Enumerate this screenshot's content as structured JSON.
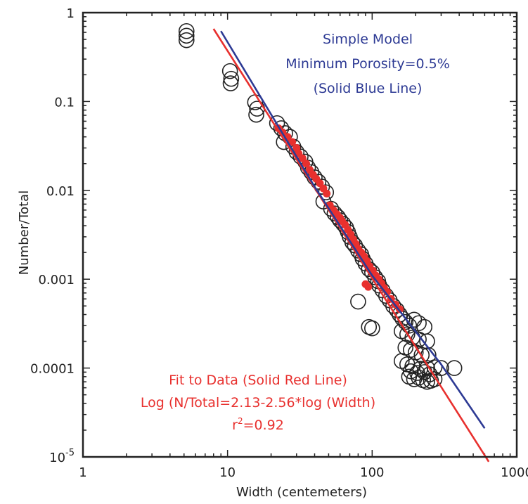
{
  "chart_data": {
    "type": "scatter",
    "title": "",
    "xlabel": "Width (centemeters)",
    "ylabel": "Number/Total",
    "x_scale": "log",
    "y_scale": "log",
    "xlim": [
      1,
      1000
    ],
    "ylim": [
      1e-05,
      1
    ],
    "x_ticks": [
      {
        "value": 1,
        "label": "1"
      },
      {
        "value": 10,
        "label": "10"
      },
      {
        "value": 100,
        "label": "100"
      },
      {
        "value": 1000,
        "label": "1000"
      }
    ],
    "y_ticks": [
      {
        "value": 1,
        "label": "1"
      },
      {
        "value": 0.1,
        "label": "0.1"
      },
      {
        "value": 0.01,
        "label": "0.01"
      },
      {
        "value": 0.001,
        "label": "0.001"
      },
      {
        "value": 0.0001,
        "label": "0.0001"
      },
      {
        "value": 1e-05,
        "label_base": "10",
        "label_exp": "-5"
      }
    ],
    "grid": false,
    "colors": {
      "open_marker": "#222222",
      "filled_marker": "#e8302e",
      "model_line": "#2d3a94",
      "fit_line": "#e8302e"
    },
    "series": [
      {
        "marker": "open-circle",
        "points": [
          [
            5.2,
            0.62
          ],
          [
            5.2,
            0.55
          ],
          [
            5.2,
            0.49
          ],
          [
            10.4,
            0.22
          ],
          [
            10.6,
            0.18
          ],
          [
            10.5,
            0.16
          ],
          [
            15.5,
            0.098
          ],
          [
            16,
            0.083
          ],
          [
            15.8,
            0.071
          ],
          [
            22,
            0.057
          ],
          [
            23.5,
            0.05
          ],
          [
            25,
            0.044
          ],
          [
            27,
            0.04
          ],
          [
            24.5,
            0.035
          ],
          [
            28.5,
            0.031
          ],
          [
            30,
            0.027
          ],
          [
            32,
            0.024
          ],
          [
            34.5,
            0.021
          ],
          [
            36,
            0.018
          ],
          [
            38,
            0.016
          ],
          [
            40,
            0.014
          ],
          [
            42.5,
            0.0125
          ],
          [
            45,
            0.011
          ],
          [
            48,
            0.0095
          ],
          [
            46,
            0.0075
          ],
          [
            52,
            0.0062
          ],
          [
            55,
            0.0055
          ],
          [
            58,
            0.005
          ],
          [
            60,
            0.0046
          ],
          [
            63,
            0.0042
          ],
          [
            66,
            0.0038
          ],
          [
            68,
            0.0034
          ],
          [
            70,
            0.003
          ],
          [
            73,
            0.0026
          ],
          [
            76,
            0.0024
          ],
          [
            80,
            0.0021
          ],
          [
            84,
            0.0019
          ],
          [
            86,
            0.0017
          ],
          [
            90,
            0.0015
          ],
          [
            95,
            0.0013
          ],
          [
            100,
            0.0012
          ],
          [
            105,
            0.00105
          ],
          [
            110,
            0.00095
          ],
          [
            112,
            0.00085
          ],
          [
            118,
            0.00075
          ],
          [
            80,
            0.00056
          ],
          [
            125,
            0.00065
          ],
          [
            132,
            0.00058
          ],
          [
            140,
            0.0005
          ],
          [
            148,
            0.00045
          ],
          [
            155,
            0.0004
          ],
          [
            162,
            0.00036
          ],
          [
            170,
            0.00033
          ],
          [
            180,
            0.0003
          ],
          [
            195,
            0.00035
          ],
          [
            210,
            0.00032
          ],
          [
            230,
            0.00029
          ],
          [
            95,
            0.00029
          ],
          [
            100,
            0.00028
          ],
          [
            160,
            0.00026
          ],
          [
            175,
            0.00024
          ],
          [
            190,
            0.00022
          ],
          [
            210,
            0.00021
          ],
          [
            240,
            0.0002
          ],
          [
            170,
            0.00017
          ],
          [
            185,
            0.00016
          ],
          [
            200,
            0.00015
          ],
          [
            220,
            0.00014
          ],
          [
            245,
            0.00014
          ],
          [
            160,
            0.00012
          ],
          [
            175,
            0.00011
          ],
          [
            190,
            0.000105
          ],
          [
            215,
            9.8e-05
          ],
          [
            240,
            0.0001
          ],
          [
            270,
            0.000102
          ],
          [
            300,
            0.0001
          ],
          [
            370,
            0.0001
          ],
          [
            185,
            9.2e-05
          ],
          [
            205,
            8.8e-05
          ],
          [
            230,
            9e-05
          ],
          [
            250,
            8.5e-05
          ],
          [
            180,
            8e-05
          ],
          [
            195,
            7.5e-05
          ],
          [
            210,
            7.8e-05
          ],
          [
            225,
            7.3e-05
          ],
          [
            240,
            7e-05
          ],
          [
            255,
            7.2e-05
          ],
          [
            270,
            7.5e-05
          ]
        ]
      },
      {
        "marker": "filled-circle",
        "points": [
          [
            22.5,
            0.05
          ],
          [
            24,
            0.045
          ],
          [
            26,
            0.04
          ],
          [
            28,
            0.035
          ],
          [
            30,
            0.03
          ],
          [
            31,
            0.026
          ],
          [
            33,
            0.023
          ],
          [
            35,
            0.02
          ],
          [
            37,
            0.017
          ],
          [
            39,
            0.015
          ],
          [
            41,
            0.0135
          ],
          [
            43.5,
            0.012
          ],
          [
            46,
            0.0105
          ],
          [
            48.5,
            0.0092
          ],
          [
            51,
            0.0068
          ],
          [
            54,
            0.006
          ],
          [
            57,
            0.0054
          ],
          [
            60,
            0.0049
          ],
          [
            62,
            0.0045
          ],
          [
            65,
            0.0041
          ],
          [
            68,
            0.0036
          ],
          [
            71,
            0.0032
          ],
          [
            74,
            0.0028
          ],
          [
            77,
            0.0025
          ],
          [
            80,
            0.0022
          ],
          [
            84,
            0.002
          ],
          [
            88,
            0.0018
          ],
          [
            92,
            0.0016
          ],
          [
            96,
            0.0014
          ],
          [
            101,
            0.00125
          ],
          [
            106,
            0.0011
          ],
          [
            111,
            0.001
          ],
          [
            116,
            0.0009
          ],
          [
            121,
            0.0008
          ],
          [
            127,
            0.00072
          ],
          [
            90,
            0.00088
          ],
          [
            94,
            0.00082
          ],
          [
            135,
            0.0006
          ],
          [
            145,
            0.00052
          ],
          [
            155,
            0.00046
          ]
        ]
      }
    ],
    "lines": [
      {
        "kind": "fit",
        "equation": {
          "a": 2.13,
          "b": -2.56
        },
        "x_range": [
          8,
          640
        ]
      },
      {
        "kind": "model",
        "points": [
          [
            9,
            0.62
          ],
          [
            40,
            0.011
          ],
          [
            100,
            0.0011
          ],
          [
            300,
            0.00011
          ],
          [
            600,
            2.1e-05
          ]
        ]
      }
    ],
    "annotations": {
      "model_lines": [
        "Simple Model",
        "Minimum Porosity=0.5%",
        "(Solid Blue Line)"
      ],
      "fit_line1": "Fit to Data (Solid Red Line)",
      "fit_line2": "Log (N/Total=2.13-2.56*log (Width)",
      "fit_r_prefix": "r",
      "fit_r_sup": "2",
      "fit_r_value": "=0.92"
    }
  }
}
